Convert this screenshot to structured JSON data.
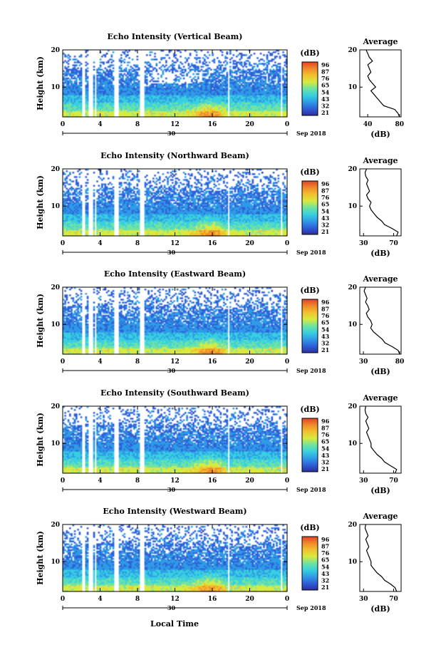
{
  "figure": {
    "xlabel": "Local Time",
    "date_suffix": "Sep 2018",
    "date_day": "30",
    "colorbar_title": "(dB)",
    "avg_title": "Average",
    "avg_xlabel": "(dB)",
    "ylabel": "Height (km)"
  },
  "colors": {
    "scale": [
      "#2b2f9e",
      "#2f5fd8",
      "#2f9be6",
      "#38d0e0",
      "#6fe39f",
      "#d6ea3f",
      "#f2c12e",
      "#f08a2a",
      "#e0432a"
    ],
    "background": "#ffffff"
  },
  "chart_data": [
    {
      "type": "heatmap",
      "title": "Echo Intensity (Vertical Beam)",
      "ylabel": "Height (km)",
      "x_ticks": [
        "0",
        "4",
        "8",
        "12",
        "16",
        "20",
        "0"
      ],
      "xlim": [
        0,
        24
      ],
      "y_ticks": [
        "20",
        "10"
      ],
      "ylim": [
        2,
        20
      ],
      "colorbar_ticks": [
        "96",
        "87",
        "76",
        "65",
        "54",
        "43",
        "32",
        "21"
      ],
      "avg_x_ticks": [
        "40",
        "80"
      ],
      "avg_xlim": [
        30,
        82
      ],
      "avg_profile": {
        "height": [
          2,
          3,
          4,
          5,
          6,
          7,
          8,
          9,
          10,
          11,
          12,
          13,
          14,
          15,
          16,
          17,
          18,
          19,
          20
        ],
        "value": [
          80,
          78,
          74,
          60,
          56,
          52,
          48,
          44,
          50,
          46,
          42,
          40,
          44,
          42,
          40,
          46,
          42,
          40,
          38
        ]
      }
    },
    {
      "type": "heatmap",
      "title": "Echo Intensity (Northward Beam)",
      "ylabel": "Height (km)",
      "x_ticks": [
        "0",
        "4",
        "8",
        "12",
        "16",
        "20",
        "0"
      ],
      "xlim": [
        0,
        24
      ],
      "y_ticks": [
        "20",
        "10"
      ],
      "ylim": [
        2,
        20
      ],
      "colorbar_ticks": [
        "96",
        "87",
        "76",
        "65",
        "54",
        "43",
        "32",
        "21"
      ],
      "avg_x_ticks": [
        "30",
        "70"
      ],
      "avg_xlim": [
        25,
        80
      ],
      "avg_profile": {
        "height": [
          2,
          3,
          4,
          5,
          6,
          7,
          8,
          9,
          10,
          11,
          12,
          13,
          14,
          15,
          16,
          17,
          18,
          19,
          20
        ],
        "value": [
          74,
          76,
          68,
          58,
          54,
          48,
          44,
          40,
          38,
          40,
          36,
          34,
          38,
          36,
          34,
          36,
          33,
          32,
          34
        ]
      }
    },
    {
      "type": "heatmap",
      "title": "Echo Intensity (Eastward Beam)",
      "ylabel": "Height (km)",
      "x_ticks": [
        "0",
        "4",
        "8",
        "12",
        "16",
        "20",
        "0"
      ],
      "xlim": [
        0,
        24
      ],
      "y_ticks": [
        "20",
        "10"
      ],
      "ylim": [
        2,
        20
      ],
      "colorbar_ticks": [
        "96",
        "87",
        "76",
        "65",
        "54",
        "43",
        "32",
        "21"
      ],
      "avg_x_ticks": [
        "30",
        "80"
      ],
      "avg_xlim": [
        25,
        82
      ],
      "avg_profile": {
        "height": [
          2,
          3,
          4,
          5,
          6,
          7,
          8,
          9,
          10,
          11,
          12,
          13,
          14,
          15,
          16,
          17,
          18,
          19,
          20
        ],
        "value": [
          80,
          78,
          70,
          60,
          56,
          50,
          44,
          40,
          42,
          40,
          36,
          34,
          38,
          36,
          33,
          35,
          33,
          31,
          33
        ]
      }
    },
    {
      "type": "heatmap",
      "title": "Echo Intensity (Southward Beam)",
      "ylabel": "Height (km)",
      "x_ticks": [
        "0",
        "4",
        "8",
        "12",
        "16",
        "20",
        "0"
      ],
      "xlim": [
        0,
        24
      ],
      "y_ticks": [
        "20",
        "10"
      ],
      "ylim": [
        2,
        20
      ],
      "colorbar_ticks": [
        "96",
        "87",
        "76",
        "65",
        "54",
        "43",
        "32",
        "21"
      ],
      "avg_x_ticks": [
        "30",
        "70"
      ],
      "avg_xlim": [
        25,
        80
      ],
      "avg_profile": {
        "height": [
          2,
          3,
          4,
          5,
          6,
          7,
          8,
          9,
          10,
          11,
          12,
          13,
          14,
          15,
          16,
          17,
          18,
          19,
          20
        ],
        "value": [
          72,
          74,
          66,
          58,
          54,
          48,
          44,
          40,
          40,
          38,
          36,
          34,
          37,
          35,
          33,
          36,
          33,
          32,
          33
        ]
      }
    },
    {
      "type": "heatmap",
      "title": "Echo Intensity (Westward Beam)",
      "ylabel": "Height (km)",
      "x_ticks": [
        "0",
        "4",
        "8",
        "12",
        "16",
        "20",
        "0"
      ],
      "xlim": [
        0,
        24
      ],
      "y_ticks": [
        "20",
        "10"
      ],
      "ylim": [
        2,
        20
      ],
      "colorbar_ticks": [
        "96",
        "87",
        "76",
        "65",
        "54",
        "43",
        "32",
        "21"
      ],
      "avg_x_ticks": [
        "30",
        "70"
      ],
      "avg_xlim": [
        25,
        80
      ],
      "avg_profile": {
        "height": [
          2,
          3,
          4,
          5,
          6,
          7,
          8,
          9,
          10,
          11,
          12,
          13,
          14,
          15,
          16,
          17,
          18,
          19,
          20
        ],
        "value": [
          74,
          72,
          66,
          58,
          54,
          48,
          44,
          40,
          40,
          38,
          36,
          34,
          37,
          35,
          33,
          36,
          34,
          32,
          33
        ]
      }
    }
  ]
}
